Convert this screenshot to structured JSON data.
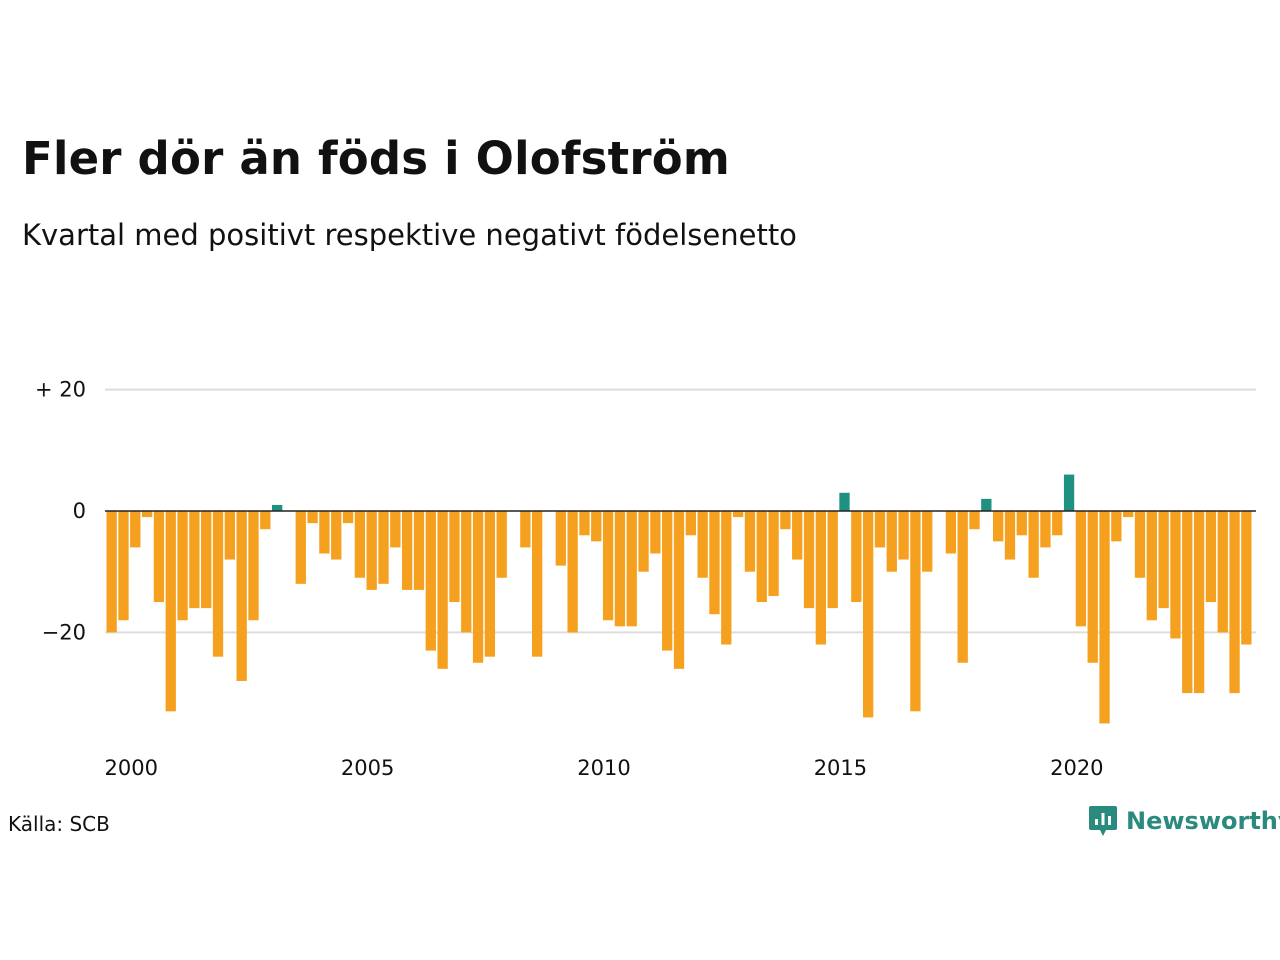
{
  "title": "Fler dör än föds i Olofström",
  "subtitle": "Kvartal med positivt respektive negativt födelsenetto",
  "source": "Källa: SCB",
  "brand": {
    "name": "Newsworthy",
    "icon": "newsworthy-logo-icon",
    "color": "#2a8a7d"
  },
  "colors": {
    "positive": "#1f9181",
    "negative": "#f5a01e",
    "grid": "#dddddd",
    "zero_line": "#222222"
  },
  "chart_data": {
    "type": "bar",
    "title": "Fler dör än föds i Olofström",
    "subtitle": "Kvartal med positivt respektive negativt födelsenetto",
    "xlabel": "",
    "ylabel": "",
    "x_start": "2000 Q1",
    "x_ticks": [
      "2000",
      "2005",
      "2010",
      "2015",
      "2020"
    ],
    "y_ticks": [
      {
        "value": 20,
        "label": "+ 20"
      },
      {
        "value": 0,
        "label": "0"
      },
      {
        "value": -20,
        "label": "−20"
      }
    ],
    "ylim": [
      -36,
      22
    ],
    "grid": true,
    "legend": "none",
    "series": [
      {
        "values": [
          -20,
          -18,
          -6,
          -1,
          -15,
          -33,
          -18,
          -16,
          -16,
          -24,
          -8,
          -28,
          -18,
          -3,
          1,
          0,
          -12,
          -2,
          -7,
          -8,
          -2,
          -11,
          -13,
          -12,
          -6,
          -13,
          -13,
          -23,
          -26,
          -15,
          -20,
          -25,
          -24,
          -11,
          0,
          -6,
          -24,
          0,
          -9,
          -20,
          -4,
          -5,
          -18,
          -19,
          -19,
          -10,
          -7,
          -23,
          -26,
          -4,
          -11,
          -17,
          -22,
          -1,
          -10,
          -15,
          -14,
          -3,
          -8,
          -16,
          -22,
          -16,
          3,
          -15,
          -34,
          -6,
          -10,
          -8,
          -33,
          -10,
          0,
          -7,
          -25,
          -3,
          2,
          -5,
          -8,
          -4,
          -11,
          -6,
          -4,
          6,
          -19,
          -25,
          -35,
          -5,
          -1,
          -11,
          -18,
          -16,
          -21,
          -30,
          -30,
          -15,
          -20,
          -30,
          -22
        ]
      }
    ]
  }
}
